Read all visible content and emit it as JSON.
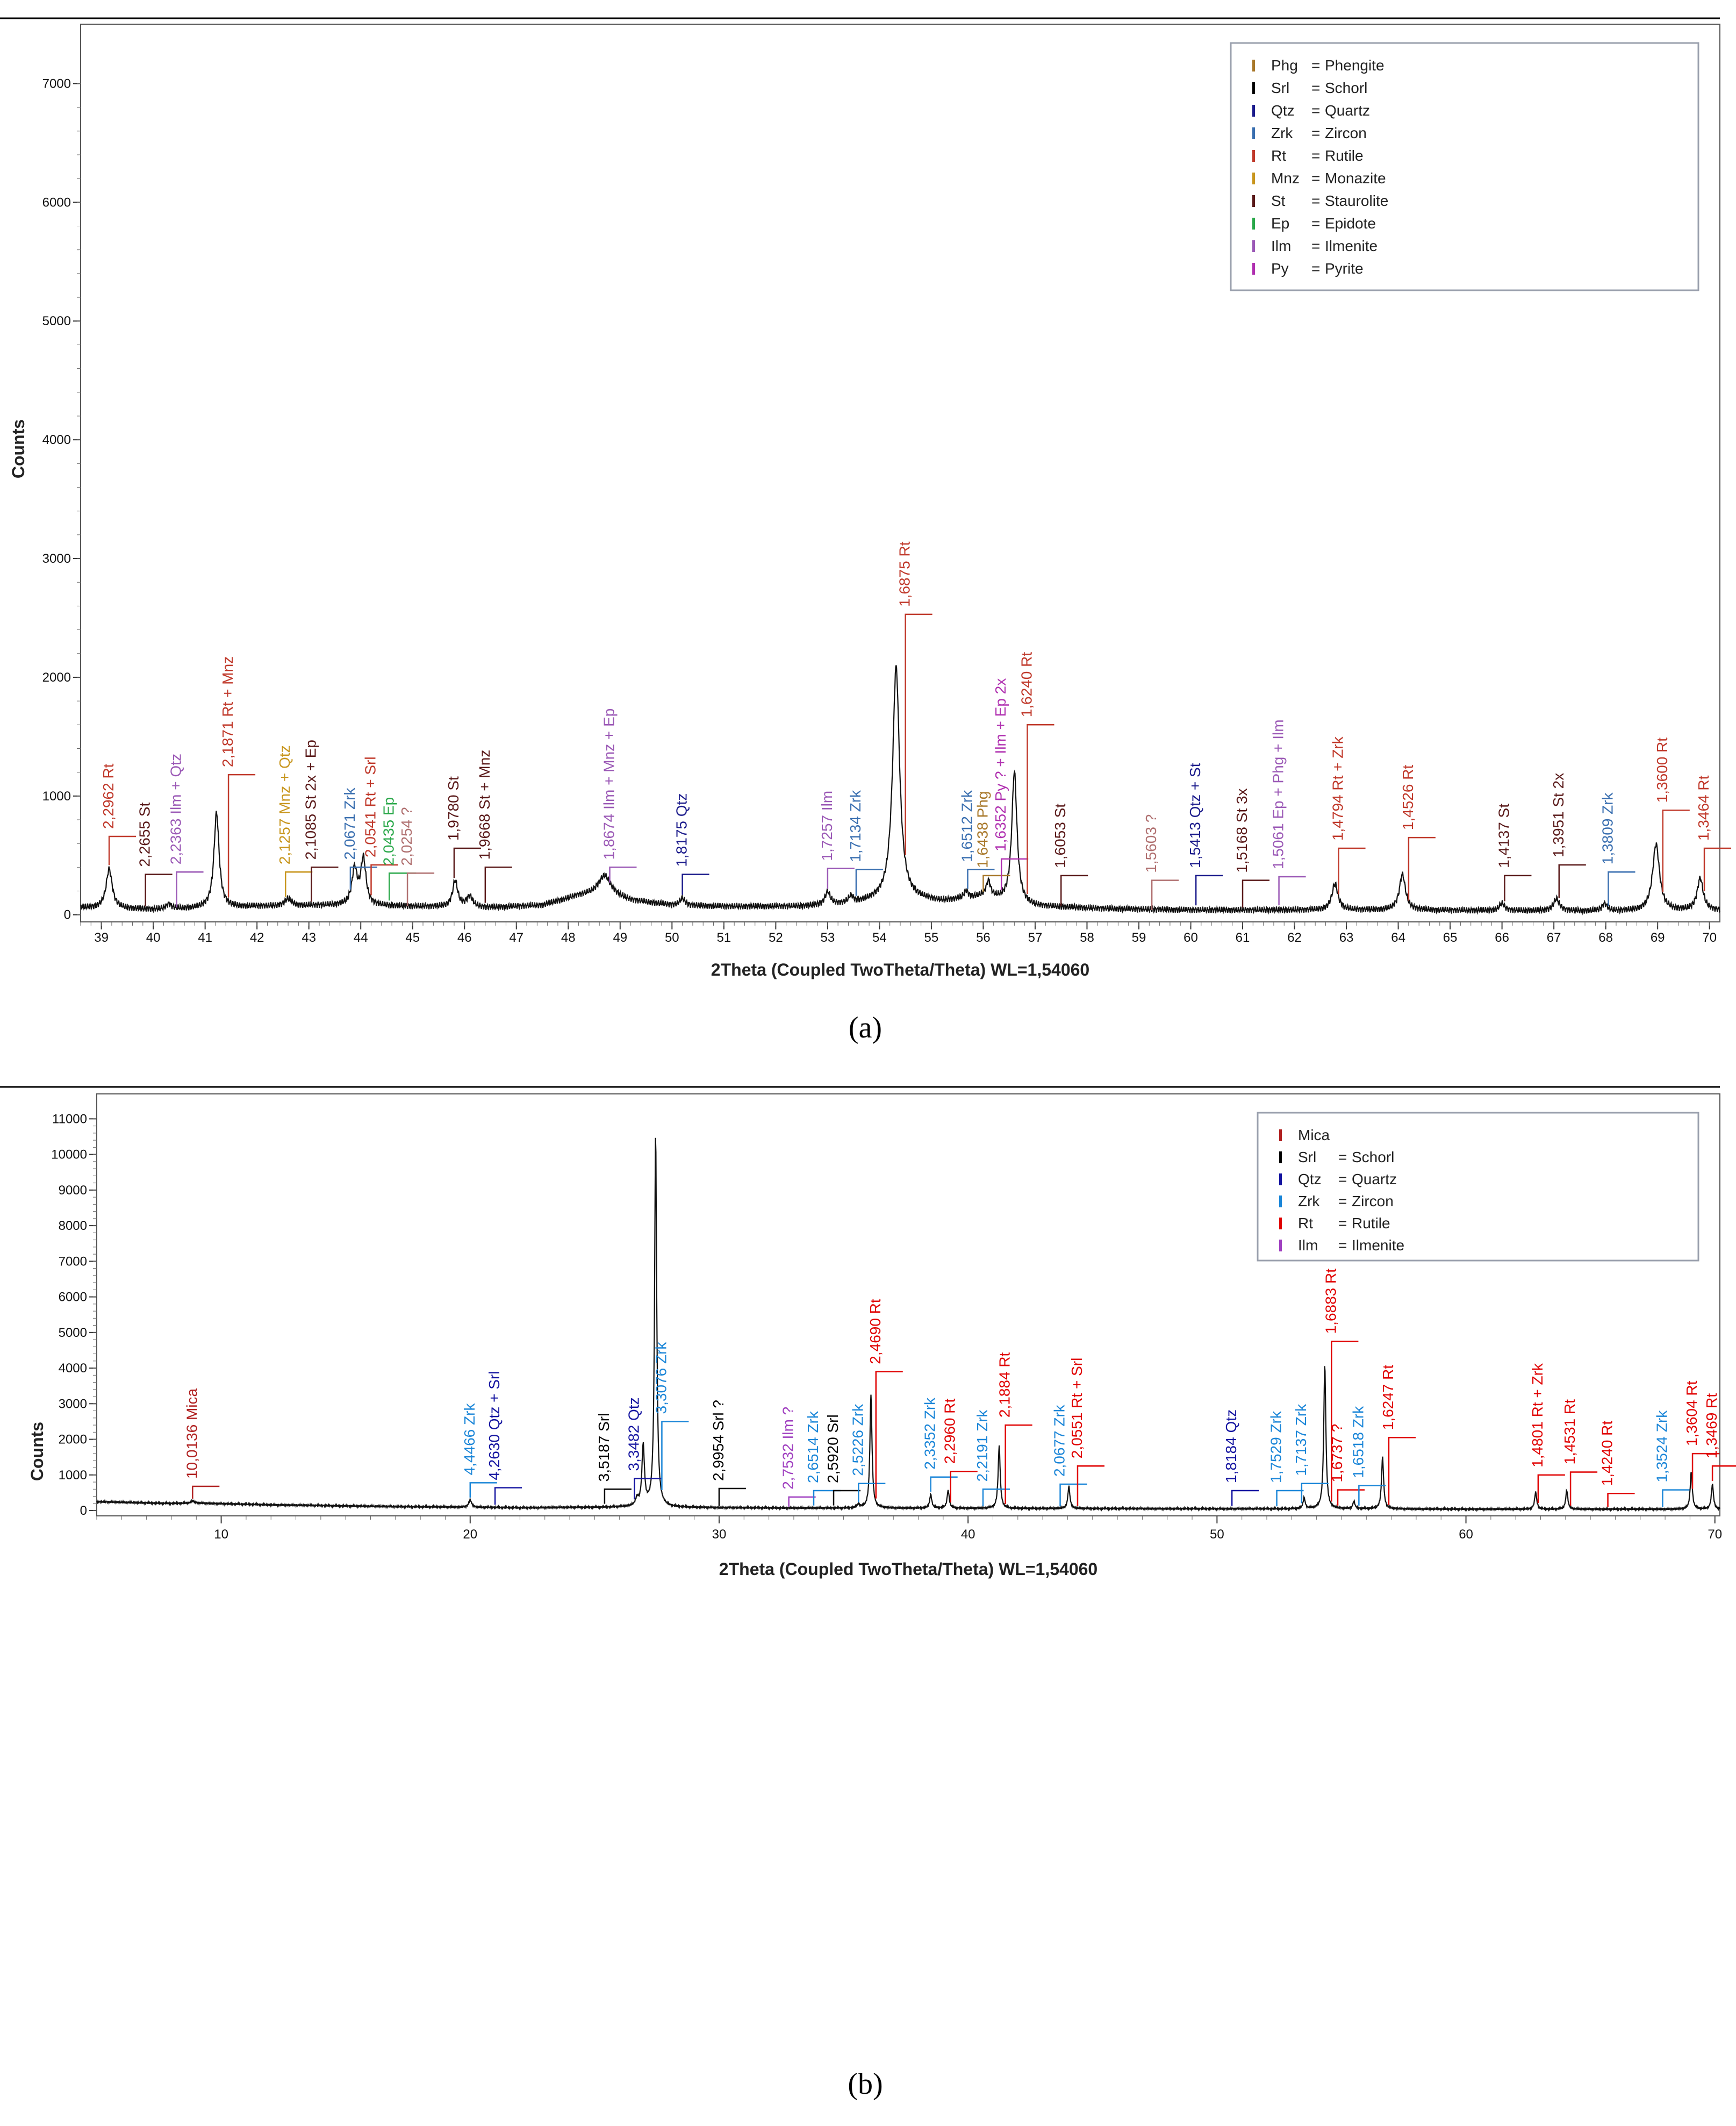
{
  "colors": {
    "Rt": "#c0392b",
    "St": "#5a1a1a",
    "Qtz": "#1c1c8c",
    "Zrk": "#3a6fb0",
    "Ilm": "#9b59b6",
    "Mnz": "#c8961e",
    "Ep": "#2aa84a",
    "Py": "#b030b0",
    "Phg": "#a8782a",
    "Srl": "#000000",
    "Unk": "#b07070",
    "RtB": "#e00000",
    "ZrkB": "#1b86d8",
    "QtzB": "#1414a0",
    "IlmB": "#a040c0",
    "MicaB": "#b02020",
    "SrlB": "#000000"
  },
  "chart_data": [
    {
      "type": "line",
      "panel_label": "(a)",
      "xlabel": "2Theta (Coupled TwoTheta/Theta) WL=1,54060",
      "ylabel": "Counts",
      "xlim": [
        38.6,
        70.2
      ],
      "ylim": [
        -60,
        7500
      ],
      "xticks": [
        39,
        40,
        41,
        42,
        43,
        44,
        45,
        46,
        47,
        48,
        49,
        50,
        51,
        52,
        53,
        54,
        55,
        56,
        57,
        58,
        59,
        60,
        61,
        62,
        63,
        64,
        65,
        66,
        67,
        68,
        69,
        70
      ],
      "yticks": [
        0,
        1000,
        2000,
        3000,
        4000,
        5000,
        6000,
        7000
      ],
      "baseline": [
        [
          38.6,
          60
        ],
        [
          40.0,
          45
        ],
        [
          41.0,
          55
        ],
        [
          42.0,
          70
        ],
        [
          43.5,
          80
        ],
        [
          45.0,
          70
        ],
        [
          46.5,
          60
        ],
        [
          47.5,
          80
        ],
        [
          48.2,
          160
        ],
        [
          48.7,
          180
        ],
        [
          49.2,
          120
        ],
        [
          50.0,
          80
        ],
        [
          51.0,
          70
        ],
        [
          52.5,
          70
        ],
        [
          53.5,
          90
        ],
        [
          54.3,
          140
        ],
        [
          55.2,
          110
        ],
        [
          56.0,
          150
        ],
        [
          57.0,
          70
        ],
        [
          58.5,
          50
        ],
        [
          60.0,
          40
        ],
        [
          62.0,
          40
        ],
        [
          64.0,
          40
        ],
        [
          66.0,
          35
        ],
        [
          68.0,
          30
        ],
        [
          70.2,
          35
        ]
      ],
      "peaks": [
        [
          39.15,
          330,
          0.07
        ],
        [
          40.3,
          40,
          0.06
        ],
        [
          41.22,
          800,
          0.06
        ],
        [
          42.6,
          60,
          0.08
        ],
        [
          43.88,
          300,
          0.06
        ],
        [
          44.05,
          390,
          0.06
        ],
        [
          45.82,
          220,
          0.06
        ],
        [
          46.1,
          90,
          0.07
        ],
        [
          48.7,
          150,
          0.15
        ],
        [
          50.2,
          60,
          0.06
        ],
        [
          53.0,
          110,
          0.06
        ],
        [
          53.45,
          60,
          0.06
        ],
        [
          54.32,
          1950,
          0.08
        ],
        [
          55.67,
          60,
          0.05
        ],
        [
          56.1,
          130,
          0.05
        ],
        [
          56.6,
          1100,
          0.06
        ],
        [
          62.78,
          220,
          0.07
        ],
        [
          64.08,
          300,
          0.07
        ],
        [
          66.0,
          60,
          0.06
        ],
        [
          67.05,
          100,
          0.07
        ],
        [
          67.98,
          60,
          0.06
        ],
        [
          68.97,
          560,
          0.08
        ],
        [
          69.82,
          270,
          0.07
        ]
      ],
      "annotations": [
        {
          "x": 39.15,
          "y": 660,
          "text": "2,2962 Rt",
          "c": "Rt"
        },
        {
          "x": 39.85,
          "y": 340,
          "text": "2,2655 St",
          "c": "St"
        },
        {
          "x": 40.45,
          "y": 360,
          "text": "2,2363 Ilm + Qtz",
          "c": "Ilm"
        },
        {
          "x": 41.45,
          "y": 1180,
          "text": "2,1871 Rt + Mnz",
          "c": "Rt"
        },
        {
          "x": 42.55,
          "y": 360,
          "text": "2,1257 Mnz + Qtz",
          "c": "Mnz"
        },
        {
          "x": 43.05,
          "y": 400,
          "text": "2,1085 St 2x + Ep",
          "c": "St"
        },
        {
          "x": 43.8,
          "y": 400,
          "text": "2,0671 Zrk",
          "c": "Zrk"
        },
        {
          "x": 44.2,
          "y": 420,
          "text": "2,0541 Rt + Srl",
          "c": "Rt"
        },
        {
          "x": 44.55,
          "y": 350,
          "text": "2,0435 Ep",
          "c": "Ep"
        },
        {
          "x": 44.9,
          "y": 350,
          "text": "2,0254 ?",
          "c": "Unk"
        },
        {
          "x": 45.8,
          "y": 560,
          "text": "1,9780 St",
          "c": "St"
        },
        {
          "x": 46.4,
          "y": 400,
          "text": "1,9668 St + Mnz",
          "c": "St"
        },
        {
          "x": 48.8,
          "y": 400,
          "text": "1,8674 Ilm + Mnz + Ep",
          "c": "Ilm"
        },
        {
          "x": 50.2,
          "y": 340,
          "text": "1,8175 Qtz",
          "c": "Qtz"
        },
        {
          "x": 53.0,
          "y": 390,
          "text": "1,7257 Ilm",
          "c": "Ilm"
        },
        {
          "x": 53.55,
          "y": 380,
          "text": "1,7134 Zrk",
          "c": "Zrk"
        },
        {
          "x": 54.5,
          "y": 2530,
          "text": "1,6875 Rt",
          "c": "Rt"
        },
        {
          "x": 55.7,
          "y": 380,
          "text": "1,6512 Zrk",
          "c": "Zrk"
        },
        {
          "x": 56.0,
          "y": 330,
          "text": "1,6438 Phg",
          "c": "Phg"
        },
        {
          "x": 56.35,
          "y": 470,
          "text": "1,6352 Py ? + Ilm + Ep 2x",
          "c": "Py"
        },
        {
          "x": 56.85,
          "y": 1600,
          "text": "1,6240 Rt",
          "c": "Rt"
        },
        {
          "x": 57.5,
          "y": 330,
          "text": "1,6053 St",
          "c": "St"
        },
        {
          "x": 59.25,
          "y": 290,
          "text": "1,5603 ?",
          "c": "Unk"
        },
        {
          "x": 60.1,
          "y": 330,
          "text": "1,5413 Qtz + St",
          "c": "Qtz"
        },
        {
          "x": 61.0,
          "y": 290,
          "text": "1,5168 St 3x",
          "c": "St"
        },
        {
          "x": 61.7,
          "y": 320,
          "text": "1,5061 Ep + Phg + Ilm",
          "c": "Ilm"
        },
        {
          "x": 62.85,
          "y": 560,
          "text": "1,4794 Rt + Zrk",
          "c": "Rt"
        },
        {
          "x": 64.2,
          "y": 650,
          "text": "1,4526 Rt",
          "c": "Rt"
        },
        {
          "x": 66.05,
          "y": 330,
          "text": "1,4137 St",
          "c": "St"
        },
        {
          "x": 67.1,
          "y": 420,
          "text": "1,3951 St 2x",
          "c": "St"
        },
        {
          "x": 68.05,
          "y": 360,
          "text": "1,3809 Zrk",
          "c": "Zrk"
        },
        {
          "x": 69.1,
          "y": 880,
          "text": "1,3600 Rt",
          "c": "Rt"
        },
        {
          "x": 69.9,
          "y": 560,
          "text": "1,3464 Rt",
          "c": "Rt"
        }
      ],
      "legend_position": "top-right",
      "legend": [
        {
          "abbr": "Phg",
          "sep": "=",
          "name": "Phengite",
          "c": "Phg"
        },
        {
          "abbr": "Srl",
          "sep": "=",
          "name": "Schorl",
          "c": "Srl"
        },
        {
          "abbr": "Qtz",
          "sep": "=",
          "name": "Quartz",
          "c": "Qtz"
        },
        {
          "abbr": "Zrk",
          "sep": "=",
          "name": "Zircon",
          "c": "Zrk"
        },
        {
          "abbr": "Rt",
          "sep": "=",
          "name": "Rutile",
          "c": "Rt"
        },
        {
          "abbr": "Mnz",
          "sep": "=",
          "name": "Monazite",
          "c": "Mnz"
        },
        {
          "abbr": "St",
          "sep": "=",
          "name": "Staurolite",
          "c": "St"
        },
        {
          "abbr": "Ep",
          "sep": "=",
          "name": "Epidote",
          "c": "Ep"
        },
        {
          "abbr": "Ilm",
          "sep": "=",
          "name": "Ilmenite",
          "c": "Ilm"
        },
        {
          "abbr": "Py",
          "sep": "=",
          "name": "Pyrite",
          "c": "Py"
        }
      ]
    },
    {
      "type": "line",
      "panel_label": "(b)",
      "xlabel": "2Theta (Coupled TwoTheta/Theta) WL=1,54060",
      "ylabel": "Counts",
      "xlim": [
        5,
        70.2
      ],
      "ylim": [
        -150,
        11700
      ],
      "xticks": [
        10,
        20,
        30,
        40,
        50,
        60,
        70
      ],
      "yticks": [
        0,
        1000,
        2000,
        3000,
        4000,
        5000,
        6000,
        7000,
        8000,
        9000,
        10000,
        11000
      ],
      "baseline": [
        [
          5,
          250
        ],
        [
          8,
          200
        ],
        [
          9,
          210
        ],
        [
          12,
          160
        ],
        [
          16,
          120
        ],
        [
          19,
          100
        ],
        [
          22,
          80
        ],
        [
          25,
          90
        ],
        [
          26.5,
          100
        ],
        [
          28,
          90
        ],
        [
          30,
          80
        ],
        [
          34,
          70
        ],
        [
          38,
          70
        ],
        [
          42,
          60
        ],
        [
          50,
          50
        ],
        [
          56,
          50
        ],
        [
          60,
          40
        ],
        [
          65,
          40
        ],
        [
          70.2,
          40
        ]
      ],
      "peaks": [
        [
          8.85,
          60,
          0.08
        ],
        [
          20.0,
          200,
          0.07
        ],
        [
          26.7,
          200,
          0.07
        ],
        [
          26.95,
          1700,
          0.06
        ],
        [
          27.45,
          10450,
          0.05
        ],
        [
          35.6,
          100,
          0.06
        ],
        [
          36.1,
          3200,
          0.05
        ],
        [
          38.5,
          380,
          0.05
        ],
        [
          39.2,
          500,
          0.05
        ],
        [
          41.25,
          1750,
          0.05
        ],
        [
          44.05,
          620,
          0.05
        ],
        [
          53.5,
          300,
          0.05
        ],
        [
          54.33,
          4050,
          0.05
        ],
        [
          55.5,
          200,
          0.05
        ],
        [
          56.65,
          1450,
          0.05
        ],
        [
          62.8,
          480,
          0.05
        ],
        [
          64.05,
          530,
          0.05
        ],
        [
          69.05,
          1050,
          0.05
        ],
        [
          69.9,
          700,
          0.05
        ]
      ],
      "annotations": [
        {
          "x": 8.85,
          "y": 680,
          "text": "10,0136 Mica",
          "c": "MicaB"
        },
        {
          "x": 20.0,
          "y": 780,
          "text": "4,4466 Zrk",
          "c": "ZrkB"
        },
        {
          "x": 21.0,
          "y": 640,
          "text": "4,2630 Qtz + Srl",
          "c": "QtzB"
        },
        {
          "x": 25.4,
          "y": 600,
          "text": "3,5187 Srl",
          "c": "SrlB"
        },
        {
          "x": 26.6,
          "y": 900,
          "text": "3,3482 Qtz",
          "c": "QtzB"
        },
        {
          "x": 27.7,
          "y": 2500,
          "text": "3,3076 Zrk",
          "c": "ZrkB"
        },
        {
          "x": 30.0,
          "y": 620,
          "text": "2,9954 Srl ?",
          "c": "SrlB"
        },
        {
          "x": 32.8,
          "y": 380,
          "text": "2,7532 Ilm ?",
          "c": "IlmB"
        },
        {
          "x": 33.8,
          "y": 560,
          "text": "2,6514 Zrk",
          "c": "ZrkB"
        },
        {
          "x": 34.6,
          "y": 560,
          "text": "2,5920 Srl",
          "c": "SrlB"
        },
        {
          "x": 35.6,
          "y": 760,
          "text": "2,5226 Zrk",
          "c": "ZrkB"
        },
        {
          "x": 36.3,
          "y": 3900,
          "text": "2,4690 Rt",
          "c": "RtB"
        },
        {
          "x": 38.5,
          "y": 940,
          "text": "2,3352 Zrk",
          "c": "ZrkB"
        },
        {
          "x": 39.3,
          "y": 1100,
          "text": "2,2960 Rt",
          "c": "RtB"
        },
        {
          "x": 40.6,
          "y": 600,
          "text": "2,2191 Zrk",
          "c": "ZrkB"
        },
        {
          "x": 41.5,
          "y": 2400,
          "text": "2,1884 Rt",
          "c": "RtB"
        },
        {
          "x": 43.7,
          "y": 740,
          "text": "2,0677 Zrk",
          "c": "ZrkB"
        },
        {
          "x": 44.4,
          "y": 1250,
          "text": "2,0551 Rt + Srl",
          "c": "RtB"
        },
        {
          "x": 50.6,
          "y": 560,
          "text": "1,8184 Qtz",
          "c": "QtzB"
        },
        {
          "x": 52.4,
          "y": 560,
          "text": "1,7529 Zrk",
          "c": "ZrkB"
        },
        {
          "x": 53.4,
          "y": 760,
          "text": "1,7137 Zrk",
          "c": "ZrkB"
        },
        {
          "x": 54.6,
          "y": 4750,
          "text": "1,6883 Rt",
          "c": "RtB"
        },
        {
          "x": 54.85,
          "y": 580,
          "text": "1,6737 ?",
          "c": "RtB"
        },
        {
          "x": 55.7,
          "y": 700,
          "text": "1,6518 Zrk",
          "c": "ZrkB"
        },
        {
          "x": 56.9,
          "y": 2050,
          "text": "1,6247 Rt",
          "c": "RtB"
        },
        {
          "x": 62.9,
          "y": 1000,
          "text": "1,4801 Rt + Zrk",
          "c": "RtB"
        },
        {
          "x": 64.2,
          "y": 1080,
          "text": "1,4531 Rt",
          "c": "RtB"
        },
        {
          "x": 65.7,
          "y": 480,
          "text": "1,4240 Rt",
          "c": "RtB"
        },
        {
          "x": 67.9,
          "y": 580,
          "text": "1,3524 Zrk",
          "c": "ZrkB"
        },
        {
          "x": 69.1,
          "y": 1600,
          "text": "1,3604 Rt",
          "c": "RtB"
        },
        {
          "x": 69.9,
          "y": 1250,
          "text": "1,3469 Rt",
          "c": "RtB"
        }
      ],
      "legend_position": "top-right",
      "legend": [
        {
          "abbr": "Mica",
          "sep": "",
          "name": "",
          "c": "MicaB"
        },
        {
          "abbr": "Srl",
          "sep": "=",
          "name": "Schorl",
          "c": "SrlB"
        },
        {
          "abbr": "Qtz",
          "sep": "=",
          "name": "Quartz",
          "c": "QtzB"
        },
        {
          "abbr": "Zrk",
          "sep": "=",
          "name": "Zircon",
          "c": "ZrkB"
        },
        {
          "abbr": "Rt",
          "sep": "=",
          "name": "Rutile",
          "c": "RtB"
        },
        {
          "abbr": "Ilm",
          "sep": "=",
          "name": "Ilmenite",
          "c": "IlmB"
        }
      ]
    }
  ]
}
